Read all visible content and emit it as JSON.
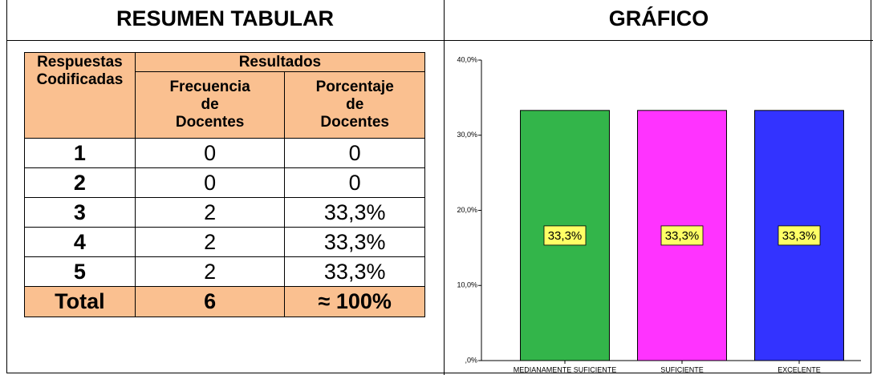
{
  "headers": [
    "RESUMEN TABULAR",
    "GRÁFICO"
  ],
  "table": {
    "group_header": "Resultados",
    "columns": [
      "Respuestas Codificadas",
      "Frecuencia de Docentes",
      "Porcentaje de Docentes"
    ],
    "rows": [
      [
        "1",
        "0",
        "0"
      ],
      [
        "2",
        "0",
        "0"
      ],
      [
        "3",
        "2",
        "33,3%"
      ],
      [
        "4",
        "2",
        "33,3%"
      ],
      [
        "5",
        "2",
        "33,3%"
      ]
    ],
    "total": [
      "Total",
      "6",
      "≈ 100%"
    ]
  },
  "chart_data": {
    "type": "bar",
    "categories": [
      "MEDIANAMENTE SUFICIENTE",
      "SUFICIENTE",
      "EXCELENTE"
    ],
    "values": [
      33.3,
      33.3,
      33.3
    ],
    "value_labels": [
      "33,3%",
      "33,3%",
      "33,3%"
    ],
    "colors": [
      "#33b54a",
      "#ff33ff",
      "#3333ff"
    ],
    "ylim": [
      0,
      40
    ],
    "yticks": [
      {
        "value": 0,
        "label": ",0%"
      },
      {
        "value": 10,
        "label": "10,0%"
      },
      {
        "value": 20,
        "label": "20,0%"
      },
      {
        "value": 30,
        "label": "30,0%"
      },
      {
        "value": 40,
        "label": "40,0%"
      }
    ]
  }
}
